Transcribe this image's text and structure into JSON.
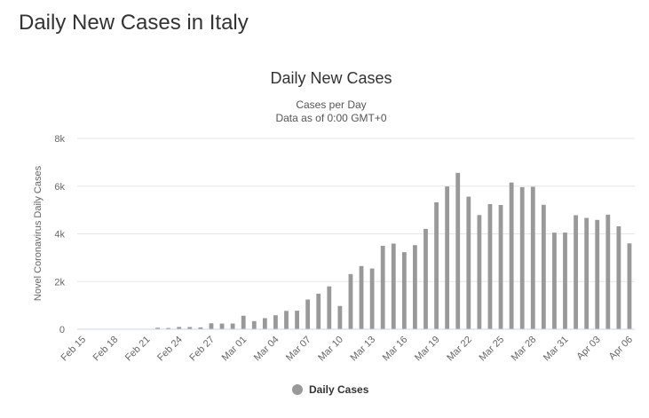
{
  "page": {
    "heading": "Daily New Cases in Italy"
  },
  "chart_data": {
    "type": "bar",
    "title": "Daily New Cases",
    "subtitle_lines": [
      "Cases per Day",
      "Data as of 0:00 GMT+0"
    ],
    "ylabel": "Novel Coronavirus Daily Cases",
    "xlabel": "",
    "ylim": [
      0,
      8000
    ],
    "yticks": [
      0,
      2000,
      4000,
      6000,
      8000
    ],
    "ytick_labels": [
      "0",
      "2k",
      "4k",
      "6k",
      "8k"
    ],
    "grid": true,
    "legend_position": "bottom-center",
    "color": "#999999",
    "x_tick_labels": [
      "Feb 15",
      "Feb 18",
      "Feb 21",
      "Feb 24",
      "Feb 27",
      "Mar 01",
      "Mar 04",
      "Mar 07",
      "Mar 10",
      "Mar 13",
      "Mar 16",
      "Mar 19",
      "Mar 22",
      "Mar 25",
      "Mar 28",
      "Mar 31",
      "Apr 03",
      "Apr 06"
    ],
    "categories": [
      "Feb 15",
      "Feb 16",
      "Feb 17",
      "Feb 18",
      "Feb 19",
      "Feb 20",
      "Feb 21",
      "Feb 22",
      "Feb 23",
      "Feb 24",
      "Feb 25",
      "Feb 26",
      "Feb 27",
      "Feb 28",
      "Feb 29",
      "Mar 01",
      "Mar 02",
      "Mar 03",
      "Mar 04",
      "Mar 05",
      "Mar 06",
      "Mar 07",
      "Mar 08",
      "Mar 09",
      "Mar 10",
      "Mar 11",
      "Mar 12",
      "Mar 13",
      "Mar 14",
      "Mar 15",
      "Mar 16",
      "Mar 17",
      "Mar 18",
      "Mar 19",
      "Mar 20",
      "Mar 21",
      "Mar 22",
      "Mar 23",
      "Mar 24",
      "Mar 25",
      "Mar 26",
      "Mar 27",
      "Mar 28",
      "Mar 29",
      "Mar 30",
      "Mar 31",
      "Apr 01",
      "Apr 02",
      "Apr 03",
      "Apr 04",
      "Apr 05",
      "Apr 06"
    ],
    "series": [
      {
        "name": "Daily Cases",
        "values": [
          0,
          0,
          0,
          0,
          0,
          0,
          14,
          62,
          53,
          97,
          93,
          78,
          250,
          238,
          240,
          566,
          342,
          466,
          587,
          769,
          778,
          1247,
          1492,
          1797,
          977,
          2313,
          2651,
          2547,
          3497,
          3590,
          3233,
          3526,
          4207,
          5322,
          5986,
          6557,
          5560,
          4789,
          5249,
          5210,
          6153,
          5959,
          5974,
          5217,
          4050,
          4053,
          4782,
          4668,
          4585,
          4805,
          4316,
          3599
        ]
      }
    ]
  }
}
